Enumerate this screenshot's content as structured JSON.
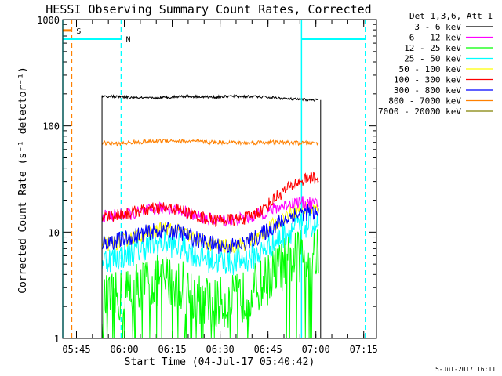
{
  "chart_data": {
    "type": "line",
    "title": "HESSI Observing Summary Count Rates, Corrected",
    "xlabel": "Start Time (04-Jul-17 05:40:42)",
    "ylabel": "Corrected Count Rate (s⁻¹ detector⁻¹)",
    "y_scale": "log",
    "ylim": [
      1,
      1000
    ],
    "xlim": [
      "05:40:42",
      "07:19:00"
    ],
    "x_ticks": [
      "05:45",
      "06:00",
      "06:15",
      "06:30",
      "06:45",
      "07:00",
      "07:15"
    ],
    "y_ticks": [
      "1",
      "10",
      "100",
      "1000"
    ],
    "legend_title": "Det 1,3,6, Att 1",
    "legend_position": "top-right",
    "series": [
      {
        "name": "3 - 6 keV",
        "color": "#000000",
        "x": [
          "05:53",
          "05:58",
          "06:03",
          "06:08",
          "06:13",
          "06:18",
          "06:23",
          "06:28",
          "06:33",
          "06:38",
          "06:43",
          "06:48",
          "06:53",
          "06:58",
          "07:01"
        ],
        "y": [
          190,
          188,
          184,
          182,
          185,
          190,
          188,
          186,
          190,
          189,
          187,
          183,
          178,
          176,
          175
        ]
      },
      {
        "name": "6 - 12 keV",
        "color": "#ff00ff",
        "x": [
          "05:53",
          "05:58",
          "06:03",
          "06:08",
          "06:13",
          "06:18",
          "06:23",
          "06:28",
          "06:33",
          "06:38",
          "06:43",
          "06:48",
          "06:53",
          "06:58",
          "07:01"
        ],
        "y": [
          14,
          14.5,
          15,
          16,
          17,
          16,
          14,
          13,
          13,
          13.5,
          15,
          17,
          19,
          19,
          18
        ]
      },
      {
        "name": "12 - 25 keV",
        "color": "#00ff00",
        "x": [
          "05:53",
          "05:58",
          "06:03",
          "06:08",
          "06:13",
          "06:18",
          "06:23",
          "06:28",
          "06:33",
          "06:38",
          "06:43",
          "06:48",
          "06:53",
          "06:58",
          "07:01"
        ],
        "y": [
          2.2,
          2.4,
          3.0,
          3.4,
          3.6,
          3.2,
          2.4,
          2.1,
          2.2,
          2.5,
          3.2,
          4.5,
          5.8,
          6.3,
          6.2
        ]
      },
      {
        "name": "25 - 50 keV",
        "color": "#00ffff",
        "x": [
          "05:53",
          "05:58",
          "06:03",
          "06:08",
          "06:13",
          "06:18",
          "06:23",
          "06:28",
          "06:33",
          "06:38",
          "06:43",
          "06:48",
          "06:53",
          "06:58",
          "07:01"
        ],
        "y": [
          5.5,
          5.8,
          6.5,
          7.5,
          8.0,
          7.2,
          6.0,
          5.4,
          5.2,
          5.5,
          6.5,
          8.5,
          11,
          12,
          11.5
        ]
      },
      {
        "name": "50 - 100 keV",
        "color": "#ffff00",
        "x": [
          "05:53",
          "05:58",
          "06:03",
          "06:08",
          "06:13",
          "06:18",
          "06:23",
          "06:28",
          "06:33",
          "06:38",
          "06:43",
          "06:48",
          "06:53",
          "06:58",
          "07:01"
        ],
        "y": [
          7.5,
          8,
          9,
          10,
          11,
          10,
          8.5,
          7.5,
          7.3,
          7.8,
          9.5,
          12.5,
          16,
          17,
          16
        ]
      },
      {
        "name": "100 - 300 keV",
        "color": "#ff0000",
        "x": [
          "05:53",
          "05:58",
          "06:03",
          "06:08",
          "06:13",
          "06:18",
          "06:23",
          "06:28",
          "06:33",
          "06:38",
          "06:43",
          "06:48",
          "06:53",
          "06:58",
          "07:01"
        ],
        "y": [
          14,
          14.5,
          15.5,
          16.5,
          17,
          16,
          14,
          13,
          13,
          13.5,
          16,
          22,
          28,
          33,
          31
        ]
      },
      {
        "name": "300 - 800 keV",
        "color": "#0000ff",
        "x": [
          "05:53",
          "05:58",
          "06:03",
          "06:08",
          "06:13",
          "06:18",
          "06:23",
          "06:28",
          "06:33",
          "06:38",
          "06:43",
          "06:48",
          "06:53",
          "06:58",
          "07:01"
        ],
        "y": [
          8,
          8.3,
          9.2,
          10,
          10.5,
          9.8,
          8.5,
          7.6,
          7.4,
          7.8,
          9.5,
          12,
          14.5,
          15.5,
          14.5
        ]
      },
      {
        "name": "800 - 7000 keV",
        "color": "#ff8000",
        "x": [
          "05:53",
          "05:58",
          "06:03",
          "06:08",
          "06:13",
          "06:18",
          "06:23",
          "06:28",
          "06:33",
          "06:38",
          "06:43",
          "06:48",
          "06:53",
          "06:58",
          "07:01"
        ],
        "y": [
          69,
          68,
          70,
          71,
          73,
          72,
          71,
          70,
          70,
          69,
          70,
          70,
          69,
          69,
          69
        ]
      },
      {
        "name": "7000 - 20000 keV",
        "color": "#808000",
        "x": [],
        "y": []
      }
    ],
    "flags": [
      {
        "label": "S",
        "color": "#ff8000",
        "style": "solid",
        "y": 790,
        "x_start": "05:40:42",
        "x_end": "05:43:30"
      },
      {
        "label": "N",
        "color": "#00ffff",
        "style": "solid",
        "y": 660,
        "x_start": "05:40:42",
        "x_end": "05:59:00"
      },
      {
        "label": "",
        "color": "#00ffff",
        "style": "solid",
        "y": 660,
        "x_start": "06:55:30",
        "x_end": "07:15:30"
      }
    ],
    "vlines": [
      {
        "x": "05:43:30",
        "color": "#ff8000",
        "style": "dashed"
      },
      {
        "x": "05:59:00",
        "color": "#00ffff",
        "style": "dashed"
      },
      {
        "x": "07:15:30",
        "color": "#00ffff",
        "style": "dashed"
      },
      {
        "x": "05:40:42",
        "color": "#00ffff",
        "style": "solid"
      },
      {
        "x": "06:55:30",
        "color": "#00ffff",
        "style": "solid"
      }
    ],
    "data_window": [
      "05:53:00",
      "07:01:30"
    ]
  },
  "footer": {
    "date": "5-Jul-2017 16:11"
  }
}
